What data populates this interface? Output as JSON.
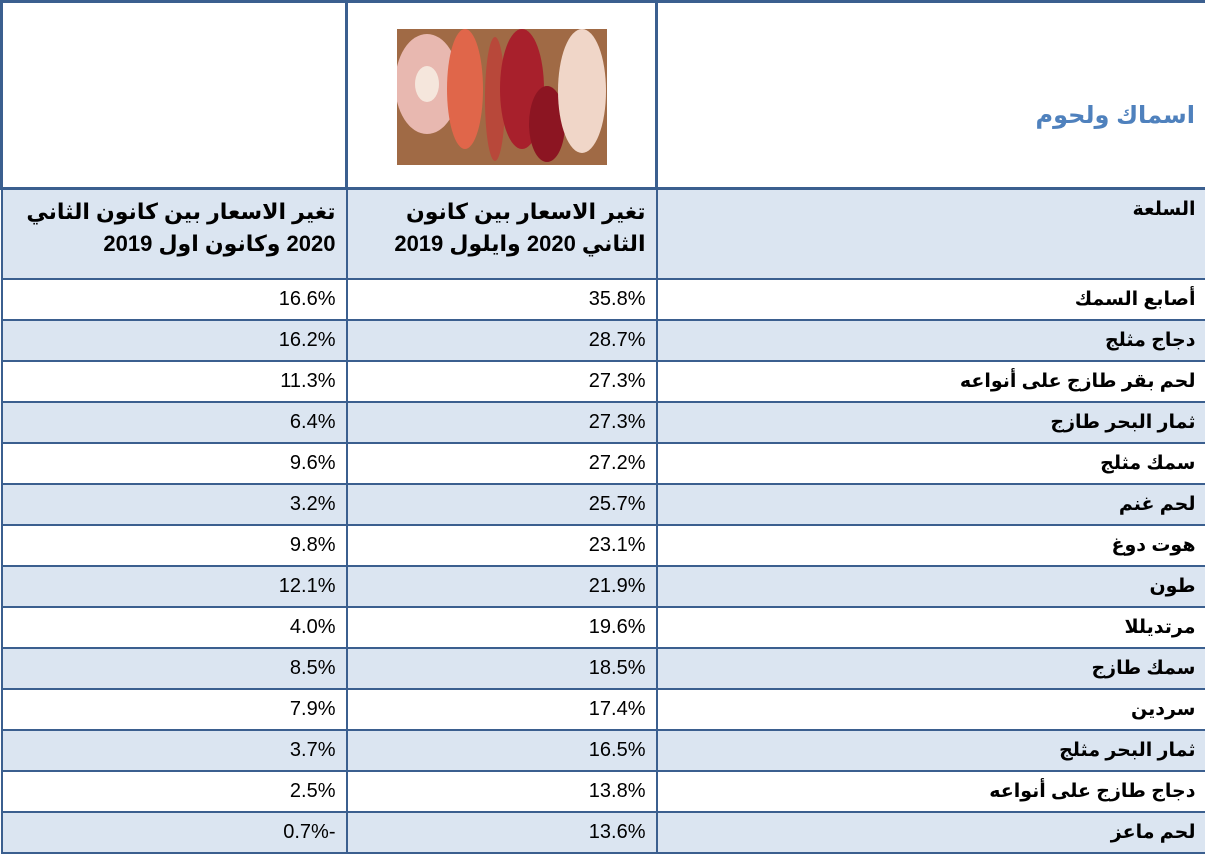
{
  "header": {
    "title": "اسماك ولحوم"
  },
  "table": {
    "columns": [
      "السلعة",
      "تغير الاسعار بين كانون الثاني  2020 وايلول 2019",
      "تغير الاسعار بين كانون الثاني 2020 وكانون اول 2019"
    ],
    "rows": [
      [
        "أصابع السمك",
        "35.8%",
        "16.6%"
      ],
      [
        "دجاج مثلج",
        "28.7%",
        "16.2%"
      ],
      [
        "لحم بقر طازج على أنواعه",
        "27.3%",
        "11.3%"
      ],
      [
        "ثمار البحر طازج",
        "27.3%",
        "6.4%"
      ],
      [
        "سمك مثلج",
        "27.2%",
        "9.6%"
      ],
      [
        "لحم غنم",
        "25.7%",
        "3.2%"
      ],
      [
        "هوت دوغ",
        "23.1%",
        "9.8%"
      ],
      [
        "طون",
        "21.9%",
        "12.1%"
      ],
      [
        "مرتديللا",
        "19.6%",
        "4.0%"
      ],
      [
        "سمك طازج",
        "18.5%",
        "8.5%"
      ],
      [
        "سردين",
        "17.4%",
        "7.9%"
      ],
      [
        "ثمار البحر مثلج",
        "16.5%",
        "3.7%"
      ],
      [
        "دجاج طازج على أنواعه",
        "13.8%",
        "2.5%"
      ],
      [
        "لحم ماعز",
        "13.6%",
        "-0.7%"
      ]
    ]
  }
}
